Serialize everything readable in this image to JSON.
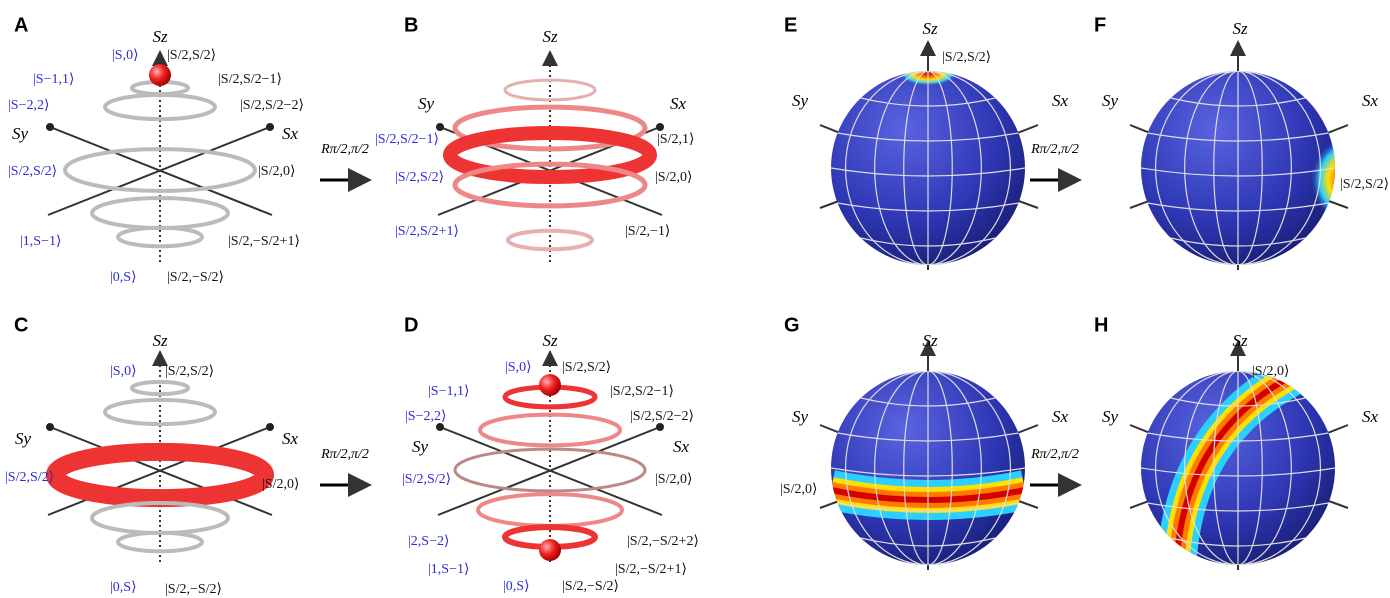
{
  "panels": [
    {
      "letter": "A",
      "axes": [
        "Sz",
        "Sy",
        "Sx"
      ],
      "blue_labels": [
        "|S,0⟩",
        "|S−1,1⟩",
        "|S−2,2⟩",
        "|S/2,S/2⟩",
        "|1,S−1⟩",
        "|0,S⟩"
      ],
      "black_labels": [
        "|S/2,S/2⟩",
        "|S/2,S/2−1⟩",
        "|S/2,S/2−2⟩",
        "|S/2,0⟩",
        "|S/2,−S/2+1⟩",
        "|S/2,−S/2⟩"
      ]
    },
    {
      "letter": "B",
      "axes": [
        "Sz",
        "Sy",
        "Sx"
      ],
      "blue_labels": [
        "|S/2,S/2−1⟩",
        "|S/2,S/2⟩",
        "|S/2,S/2+1⟩"
      ],
      "black_labels": [
        "|S/2,1⟩",
        "|S/2,0⟩",
        "|S/2,−1⟩"
      ]
    },
    {
      "letter": "C",
      "axes": [
        "Sz",
        "Sy",
        "Sx"
      ],
      "blue_labels": [
        "|S,0⟩",
        "|S/2,S/2⟩",
        "|0,S⟩"
      ],
      "black_labels": [
        "|S/2,S/2⟩",
        "|S/2,0⟩",
        "|S/2,−S/2⟩"
      ]
    },
    {
      "letter": "D",
      "axes": [
        "Sz",
        "Sy",
        "Sx"
      ],
      "blue_labels": [
        "|S,0⟩",
        "|S−1,1⟩",
        "|S−2,2⟩",
        "|S/2,S/2⟩",
        "|2,S−2⟩",
        "|1,S−1⟩",
        "|0,S⟩"
      ],
      "black_labels": [
        "|S/2,S/2⟩",
        "|S/2,S/2−1⟩",
        "|S/2,S/2−2⟩",
        "|S/2,0⟩",
        "|S/2,−S/2+2⟩",
        "|S/2,−S/2+1⟩",
        "|S/2,−S/2⟩"
      ]
    },
    {
      "letter": "E",
      "axes": [
        "Sz",
        "Sy",
        "Sx"
      ],
      "blue_labels": [],
      "black_labels": [
        "|S/2,S/2⟩"
      ]
    },
    {
      "letter": "F",
      "axes": [
        "Sz",
        "Sy",
        "Sx"
      ],
      "blue_labels": [],
      "black_labels": [
        "|S/2,S/2⟩"
      ]
    },
    {
      "letter": "G",
      "axes": [
        "Sz",
        "Sy",
        "Sx"
      ],
      "blue_labels": [],
      "black_labels": [
        "|S/2,0⟩"
      ]
    },
    {
      "letter": "H",
      "axes": [
        "Sz",
        "Sy",
        "Sx"
      ],
      "blue_labels": [],
      "black_labels": [
        "|S/2,0⟩"
      ]
    }
  ],
  "rotations": [
    "Rπ/2,π/2",
    "Rπ/2,π/2",
    "Rπ/2,π/2",
    "Rπ/2,π/2"
  ]
}
